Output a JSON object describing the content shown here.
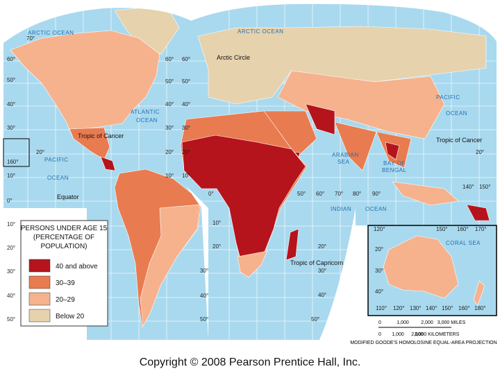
{
  "degree_labels": [
    "70°",
    "60°",
    "50°",
    "40°",
    "30°",
    "20°",
    "160°",
    "10°",
    "0°",
    "10°",
    "20°",
    "30°",
    "40°",
    "50°",
    "60°",
    "50°",
    "40°",
    "30°",
    "20°",
    "10°",
    "60°",
    "50°",
    "40°",
    "30°",
    "20°",
    "10°",
    "10°",
    "20°",
    "30°",
    "40°",
    "50°",
    "20°",
    "30°",
    "40°",
    "50°",
    "0°",
    "50°",
    "60°",
    "70°",
    "80°",
    "90°",
    "140°",
    "150°",
    "20°",
    "120°",
    "150°",
    "160°",
    "170°",
    "20°",
    "30°",
    "40°",
    "110°",
    "120°",
    "130°",
    "140°",
    "150°",
    "160°",
    "180°"
  ],
  "places": [
    "ARCTIC OCEAN",
    "ARCTIC OCEAN",
    "Arctic Circle",
    "ATLANTIC",
    "OCEAN",
    "Tropic of Cancer",
    "Tropic of Cancer",
    "PACIFIC",
    "OCEAN",
    "PACIFIC",
    "OCEAN",
    "Equator",
    "ARABIAN",
    "SEA",
    "BAY OF",
    "BENGAL",
    "INDIAN",
    "OCEAN",
    "Tropic of Capricorn",
    "CORAL SEA"
  ],
  "legend": {
    "title": [
      "PERSONS UNDER AGE 15",
      "(PERCENTAGE OF",
      "POPULATION)"
    ],
    "items": [
      {
        "label": "40 and above",
        "color": "#b5141c"
      },
      {
        "label": "30–39",
        "color": "#e97b50"
      },
      {
        "label": "20–29",
        "color": "#f6b28d"
      },
      {
        "label": "Below 20",
        "color": "#e6d2ad"
      }
    ]
  },
  "scale": {
    "miles": [
      "0",
      "1,000",
      "2,000",
      "3,000 MILES"
    ],
    "km": [
      "0",
      "1,000",
      "2,000",
      "3,000 KILOMETERS"
    ]
  },
  "projection": "MODIFIED GOODE'S HOMOLOSINE EQUAL-AREA PROJECTION",
  "copyright": "Copyright © 2008 Pearson Prentice Hall, Inc."
}
